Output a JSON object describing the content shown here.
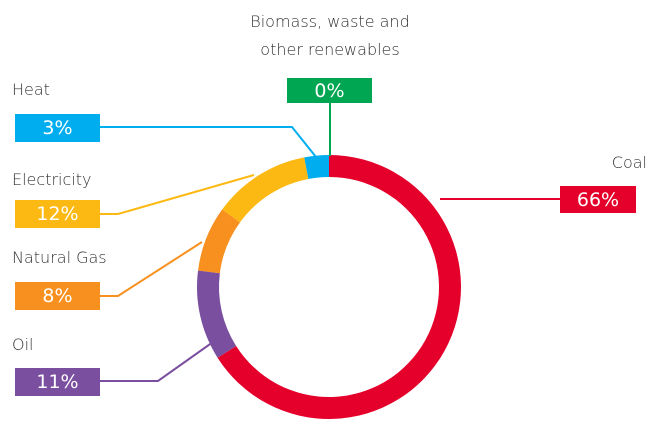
{
  "chart_data": {
    "type": "donut",
    "categories": [
      "Coal",
      "Oil",
      "Natural Gas",
      "Electricity",
      "Heat",
      "Biomass, waste and other renewables"
    ],
    "values": [
      66,
      11,
      8,
      12,
      3,
      0
    ],
    "value_labels": [
      "66%",
      "11%",
      "8%",
      "12%",
      "3%",
      "0%"
    ],
    "colors": [
      "#e4002b",
      "#7b4f9f",
      "#f7901e",
      "#fdb913",
      "#00aeef",
      "#00a651"
    ]
  }
}
